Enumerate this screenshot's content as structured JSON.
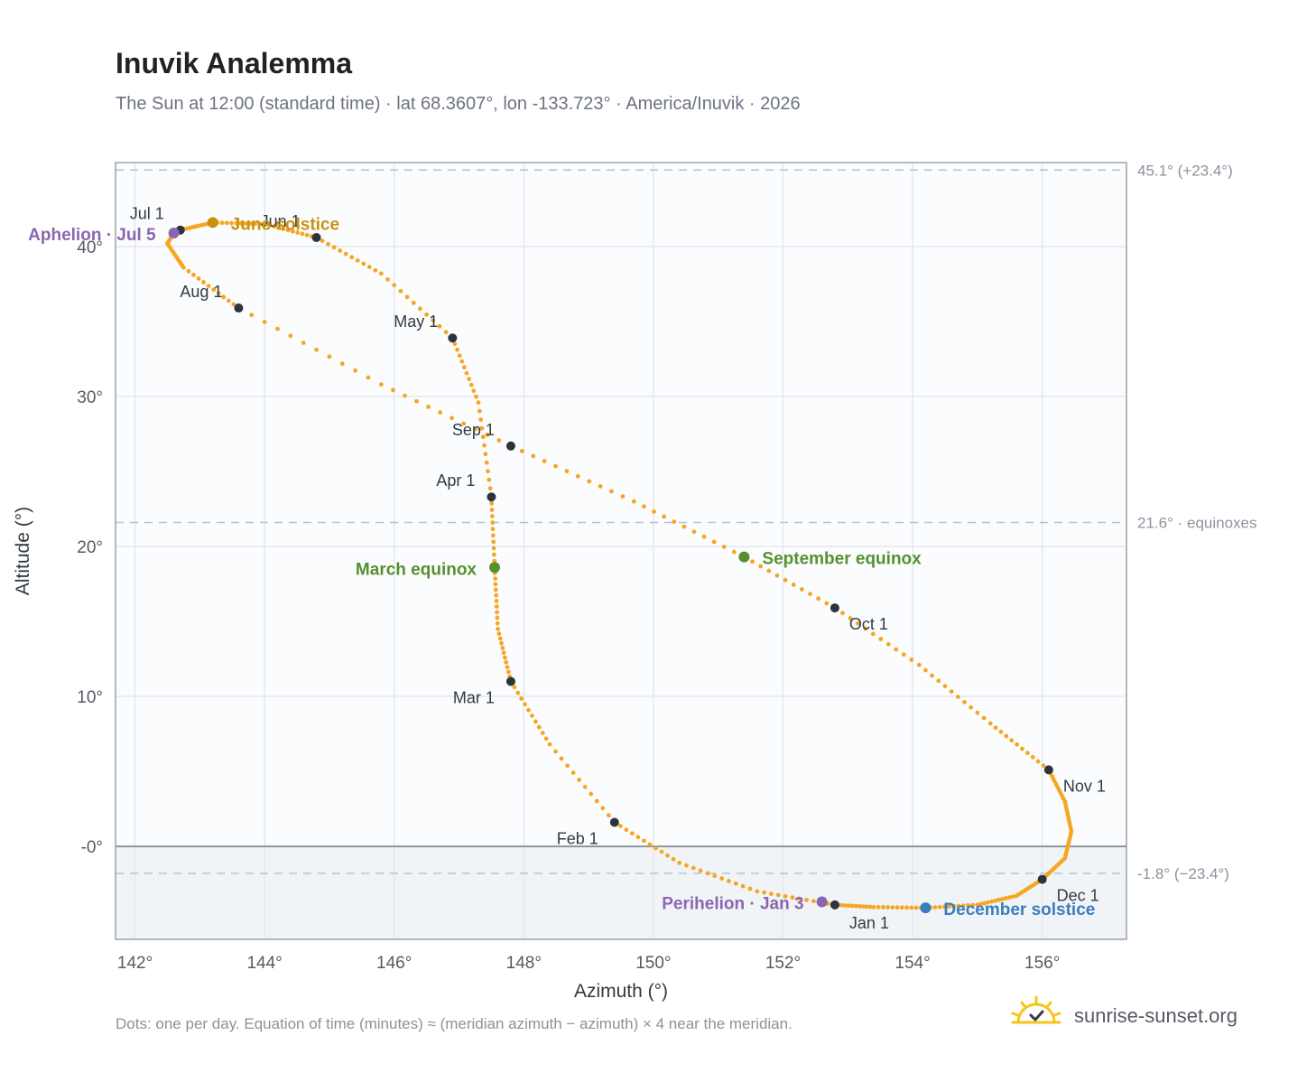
{
  "header": {
    "title": "Inuvik Analemma",
    "subtitle": "The Sun at 12:00 (standard time) · lat 68.3607°, lon -133.723° · America/Inuvik · 2026"
  },
  "footer": {
    "note": "Dots: one per day. Equation of time (minutes) ≈ (meridian azimuth − azimuth) × 4 near the meridian.",
    "brand": "sunrise-sunset.org"
  },
  "colors": {
    "curve": "#f5a623",
    "month_dot": "#2d333b",
    "june_solstice": "#c9920e",
    "december_solstice": "#3a7dbe",
    "equinox": "#55902f",
    "apsis": "#8a66b0",
    "below_horizon": "#f1f4f7",
    "plot_bg": "#fbfcfe",
    "grid": "#e4e8ee",
    "frame": "#9aa4b0"
  },
  "chart_data": {
    "type": "scatter",
    "xlabel": "Azimuth (°)",
    "ylabel": "Altitude (°)",
    "xlim": [
      141.7,
      157.3
    ],
    "ylim": [
      -6.2,
      45.6
    ],
    "x_ticks": [
      142,
      144,
      146,
      148,
      150,
      152,
      154,
      156
    ],
    "x_tick_labels": [
      "142°",
      "144°",
      "146°",
      "148°",
      "150°",
      "152°",
      "154°",
      "156°"
    ],
    "y_ticks": [
      0,
      10,
      20,
      30,
      40
    ],
    "y_tick_labels": [
      "-0°",
      "10°",
      "20°",
      "30°",
      "40°"
    ],
    "grid": true,
    "horizon_altitude": 0,
    "reference_lines": [
      {
        "y": 45.1,
        "label": "45.1° (+23.4°)"
      },
      {
        "y": 21.6,
        "label": "21.6° · equinoxes"
      },
      {
        "y": -1.8,
        "label": "-1.8° (−23.4°)"
      }
    ],
    "month_points": [
      {
        "label": "Jan 1",
        "x": 152.8,
        "y": -3.9
      },
      {
        "label": "Feb 1",
        "x": 149.4,
        "y": 1.6
      },
      {
        "label": "Mar 1",
        "x": 147.8,
        "y": 11.0
      },
      {
        "label": "Apr 1",
        "x": 147.5,
        "y": 23.3
      },
      {
        "label": "May 1",
        "x": 146.9,
        "y": 33.9
      },
      {
        "label": "Jun 1",
        "x": 144.8,
        "y": 40.6
      },
      {
        "label": "Jul 1",
        "x": 142.7,
        "y": 41.1
      },
      {
        "label": "Aug 1",
        "x": 143.6,
        "y": 35.9
      },
      {
        "label": "Sep 1",
        "x": 147.8,
        "y": 26.7
      },
      {
        "label": "Oct 1",
        "x": 152.8,
        "y": 15.9
      },
      {
        "label": "Nov 1",
        "x": 156.1,
        "y": 5.1
      },
      {
        "label": "Dec 1",
        "x": 156.0,
        "y": -2.2
      }
    ],
    "events": [
      {
        "label": "June solstice",
        "x": 143.2,
        "y": 41.6,
        "color_key": "june_solstice"
      },
      {
        "label": "December solstice",
        "x": 154.2,
        "y": -4.1,
        "color_key": "december_solstice"
      },
      {
        "label": "March equinox",
        "x": 147.55,
        "y": 18.6,
        "color_key": "equinox"
      },
      {
        "label": "September equinox",
        "x": 151.4,
        "y": 19.3,
        "color_key": "equinox"
      },
      {
        "label": "Aphelion · Jul 5",
        "x": 142.6,
        "y": 40.9,
        "color_key": "apsis"
      },
      {
        "label": "Perihelion · Jan 3",
        "x": 152.6,
        "y": -3.7,
        "color_key": "apsis"
      }
    ],
    "curve_path": [
      [
        152.8,
        -3.9
      ],
      [
        153.4,
        -4.05
      ],
      [
        154.2,
        -4.1
      ],
      [
        155.0,
        -3.9
      ],
      [
        155.6,
        -3.3
      ],
      [
        156.0,
        -2.2
      ],
      [
        156.35,
        -0.8
      ],
      [
        156.45,
        1.0
      ],
      [
        156.35,
        3.0
      ],
      [
        156.1,
        5.1
      ],
      [
        155.2,
        8.2
      ],
      [
        154.1,
        12.1
      ],
      [
        152.8,
        15.9
      ],
      [
        151.4,
        19.3
      ],
      [
        149.7,
        23.0
      ],
      [
        147.8,
        26.7
      ],
      [
        145.8,
        30.8
      ],
      [
        143.6,
        35.9
      ],
      [
        142.75,
        38.6
      ],
      [
        142.5,
        40.2
      ],
      [
        142.6,
        40.9
      ],
      [
        142.7,
        41.1
      ],
      [
        143.2,
        41.6
      ],
      [
        144.0,
        41.5
      ],
      [
        144.8,
        40.6
      ],
      [
        145.8,
        38.2
      ],
      [
        146.9,
        33.9
      ],
      [
        147.3,
        29.6
      ],
      [
        147.5,
        23.3
      ],
      [
        147.55,
        18.6
      ],
      [
        147.6,
        14.5
      ],
      [
        147.8,
        11.0
      ],
      [
        148.4,
        6.8
      ],
      [
        149.4,
        1.6
      ],
      [
        150.4,
        -1.1
      ],
      [
        151.6,
        -3.0
      ],
      [
        152.8,
        -3.9
      ]
    ]
  }
}
